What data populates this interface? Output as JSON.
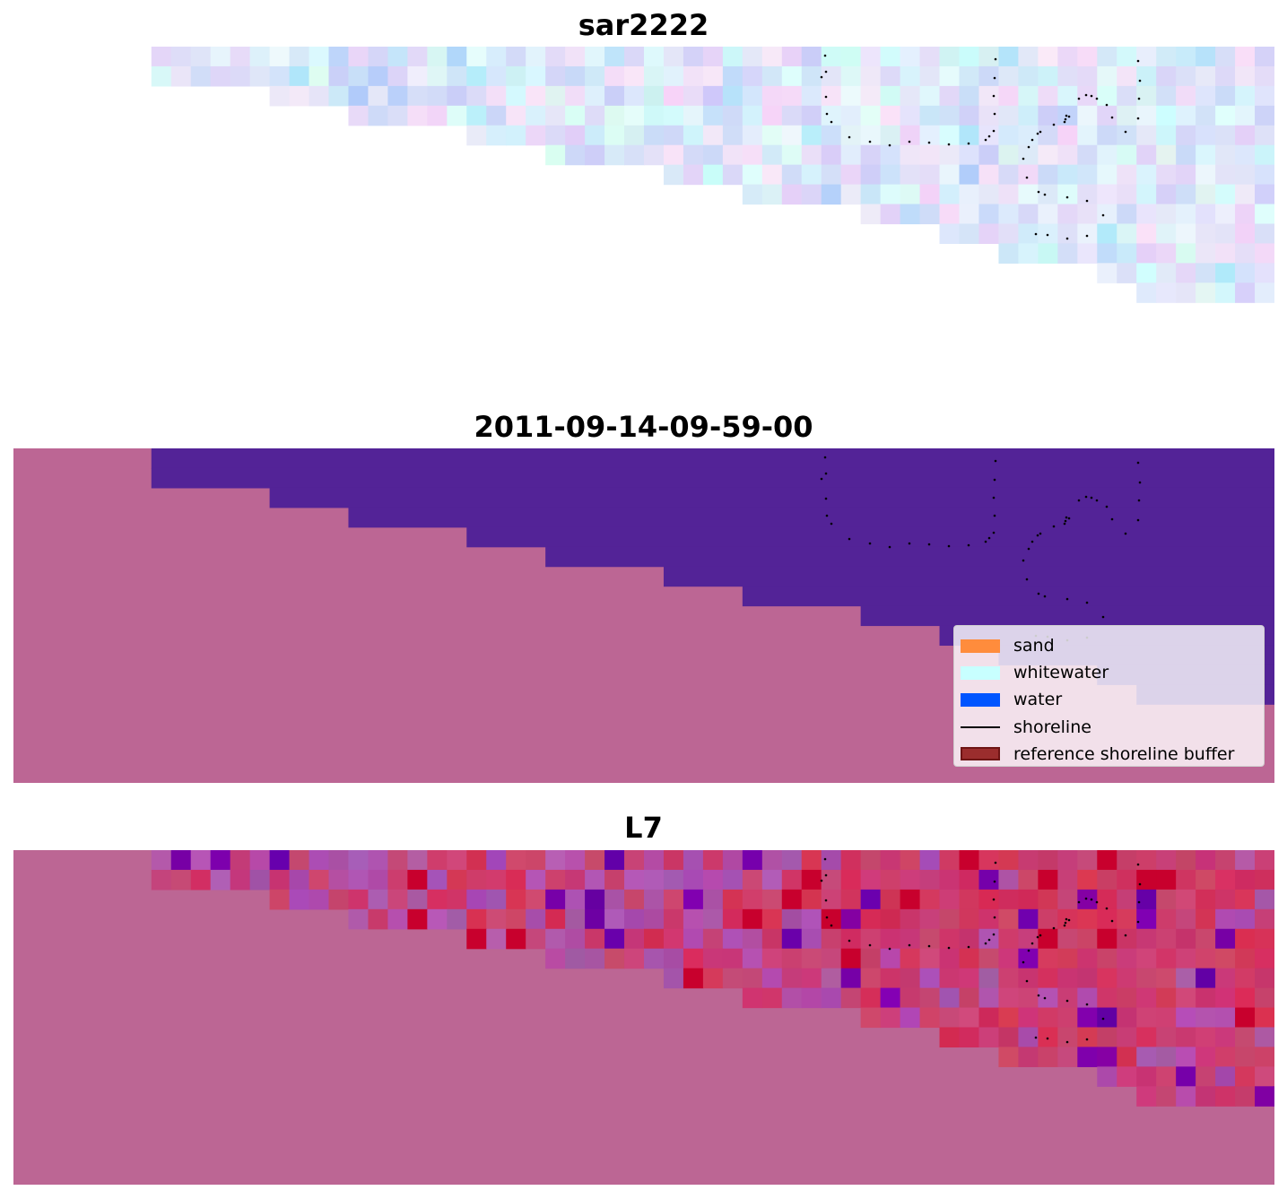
{
  "panels": [
    {
      "title": "sar2222"
    },
    {
      "title": "2011-09-14-09-59-00"
    },
    {
      "title": "L7"
    }
  ],
  "legend": {
    "items": [
      {
        "label": "sand",
        "color": "#ff8c3c",
        "kind": "patch"
      },
      {
        "label": "whitewater",
        "color": "#c8ffff",
        "kind": "patch"
      },
      {
        "label": "water",
        "color": "#0055ff",
        "kind": "patch"
      },
      {
        "label": "shoreline",
        "color": "#000000",
        "kind": "line"
      },
      {
        "label": "reference shoreline buffer",
        "color": "#9b2d2d",
        "edge": "#6e1414",
        "kind": "patch"
      }
    ]
  },
  "colors": {
    "land": "#bc6694",
    "water_class": "#532397",
    "nodata": "#ffffff",
    "shoreline_points": "#000000"
  }
}
